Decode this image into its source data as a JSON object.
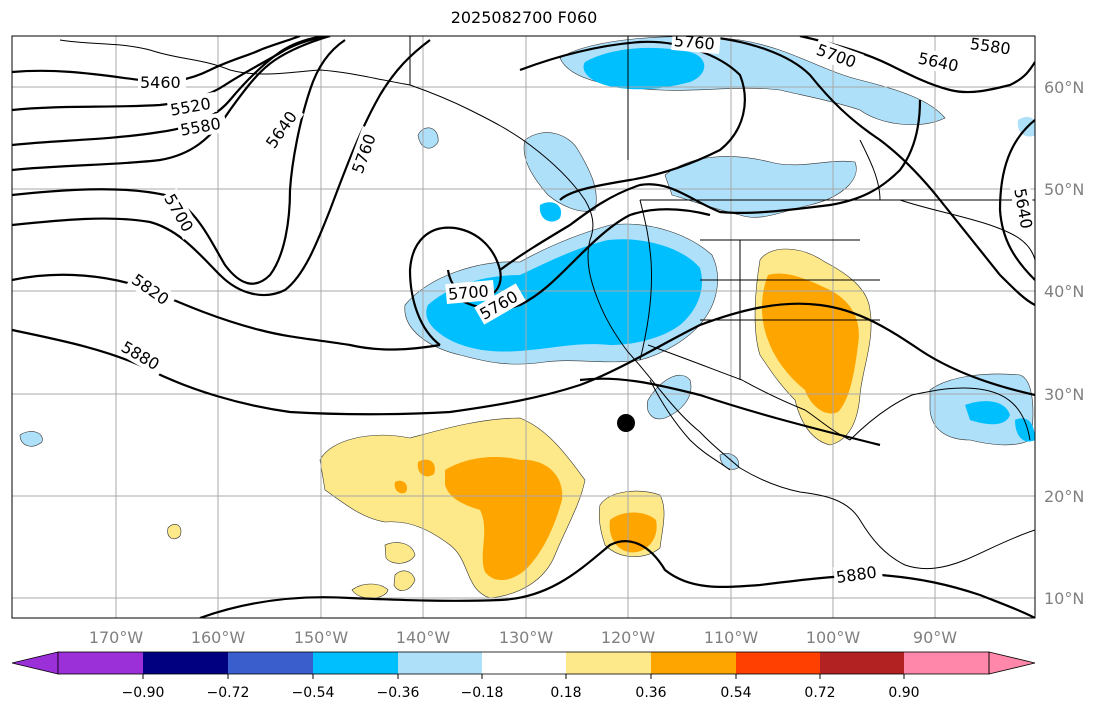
{
  "title": "2025082700 F060",
  "latitude_labels": [
    "60°N",
    "50°N",
    "40°N",
    "30°N",
    "20°N",
    "10°N"
  ],
  "longitude_labels": [
    "170°W",
    "160°W",
    "150°W",
    "140°W",
    "130°W",
    "120°W",
    "110°W",
    "100°W",
    "90°W"
  ],
  "contour_labels": [
    "5460",
    "5520",
    "5580",
    "5640",
    "5700",
    "5760",
    "5820",
    "5880",
    "5700",
    "5760",
    "5760",
    "5700",
    "5640",
    "5580",
    "5640",
    "5880"
  ],
  "colorbar": {
    "ticks": [
      "−0.90",
      "−0.72",
      "−0.54",
      "−0.36",
      "−0.18",
      "0.18",
      "0.36",
      "0.54",
      "0.72",
      "0.90"
    ],
    "colors": [
      "#9b30d9",
      "#000080",
      "#3a5fcd",
      "#00bfff",
      "#aee0fa",
      "#ffffff",
      "#fde98a",
      "#ffa500",
      "#ff4000",
      "#b22222",
      "#ff88aa"
    ]
  },
  "marker_point": {
    "lon": -120,
    "lat": 27
  }
}
